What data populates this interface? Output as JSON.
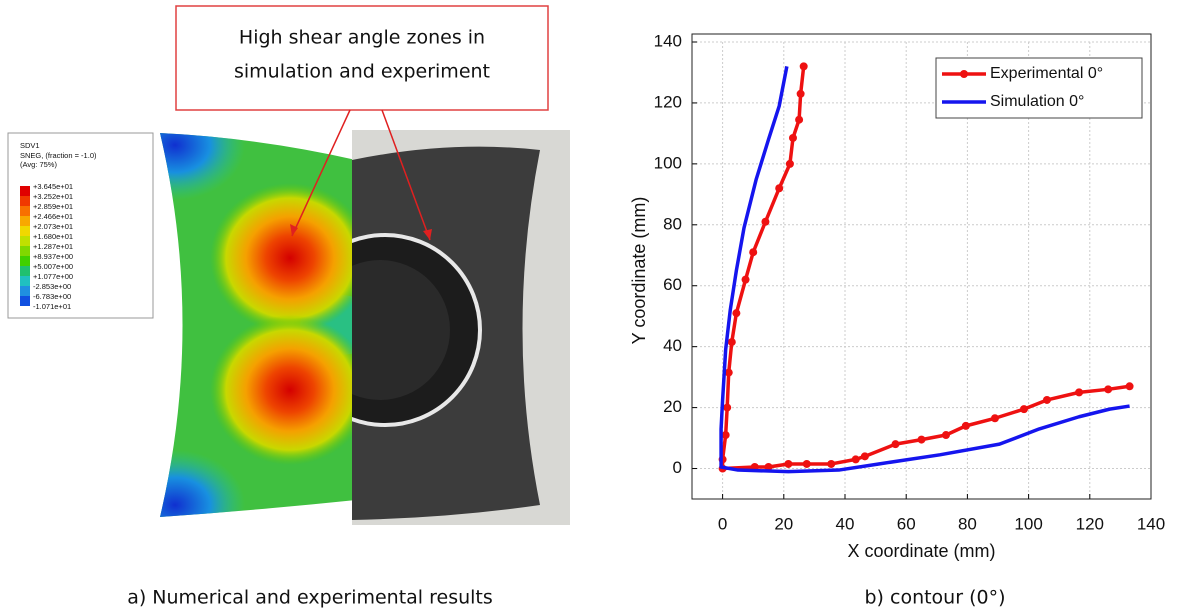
{
  "panel_a": {
    "annotation": [
      "High shear angle zones in",
      "simulation and experiment"
    ],
    "contour_legend": {
      "title": "SDV1",
      "subtitle": [
        "SNEG, (fraction = -1.0)",
        "(Avg: 75%)"
      ],
      "labels": [
        "+3.645e+01",
        "+3.252e+01",
        "+2.859e+01",
        "+2.466e+01",
        "+2.073e+01",
        "+1.680e+01",
        "+1.287e+01",
        "+8.937e+00",
        "+5.007e+00",
        "+1.077e+00",
        "-2.853e+00",
        "-6.783e+00",
        "-1.071e+01"
      ]
    },
    "caption": "a) Numerical and experimental results"
  },
  "caption_b": "b) contour (0°)",
  "chart_data": {
    "type": "line",
    "xlabel": "X coordinate (mm)",
    "ylabel": "Y coordinate (mm)",
    "xlim": [
      -10,
      140
    ],
    "ylim": [
      -10,
      140
    ],
    "xticks": [
      0,
      20,
      40,
      60,
      80,
      100,
      120,
      140
    ],
    "yticks": [
      0,
      20,
      40,
      60,
      80,
      100,
      120,
      140
    ],
    "grid": true,
    "legend": "upper right",
    "series": [
      {
        "name": "Experimental 0°",
        "color": "#ee1111",
        "marker": true,
        "x": [
          26.5,
          25.5,
          25,
          23,
          22,
          18.5,
          14,
          10,
          7.5,
          4.5,
          3,
          2,
          1.5,
          1,
          0,
          0,
          10.5,
          15,
          21.5,
          27.5,
          35.5,
          43.5,
          46.5,
          56.5,
          65,
          73,
          79.5,
          89,
          98.5,
          106,
          116.5,
          126,
          133
        ],
        "values": [
          132,
          123,
          114.5,
          108.5,
          100,
          92,
          81,
          71,
          62,
          51,
          41.5,
          31.5,
          20,
          11,
          3,
          0,
          0.5,
          0.5,
          1.5,
          1.5,
          1.5,
          3,
          4,
          8,
          9.5,
          11,
          14,
          16.5,
          19.5,
          22.5,
          25,
          26,
          27
        ]
      },
      {
        "name": "Simulation 0°",
        "color": "#1515ee",
        "marker": false,
        "x": [
          21,
          18.5,
          15,
          11,
          7,
          4.5,
          2.5,
          1,
          0,
          -0.5,
          -0.5,
          5,
          21.5,
          38,
          51,
          71,
          90.5,
          103.5,
          116.5,
          126.5,
          133
        ],
        "values": [
          132,
          119,
          108,
          95,
          79,
          65,
          52,
          39,
          22.5,
          13,
          0.5,
          -0.5,
          -1,
          -0.5,
          1.5,
          4.5,
          8,
          13,
          17,
          19.5,
          20.5
        ]
      }
    ]
  }
}
